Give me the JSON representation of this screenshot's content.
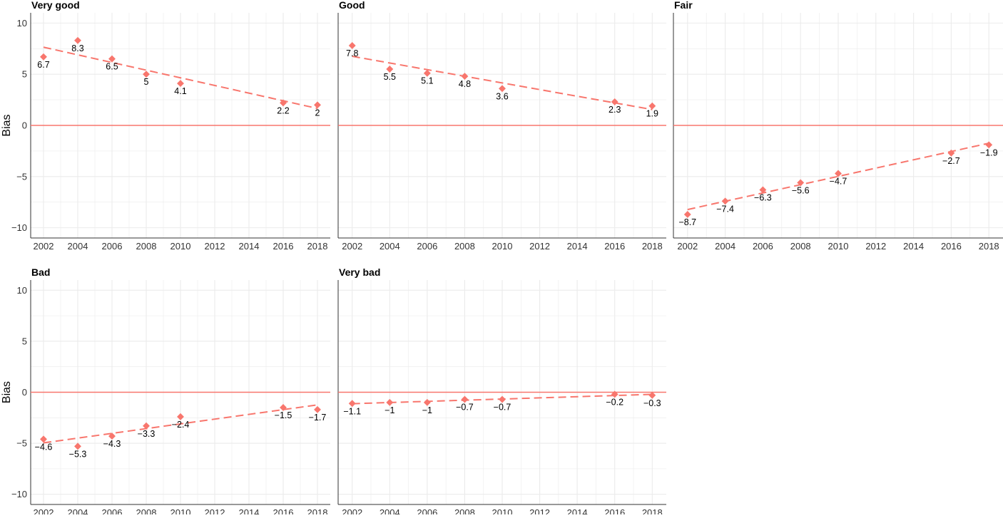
{
  "chart_data": {
    "type": "scatter",
    "xlabel": "",
    "ylabel": "Bias",
    "x": [
      2002,
      2004,
      2006,
      2008,
      2010,
      2016,
      2018
    ],
    "x_ticks": [
      2002,
      2004,
      2006,
      2008,
      2010,
      2012,
      2014,
      2016,
      2018
    ],
    "y_ticks": [
      10,
      5,
      0,
      -5,
      -10
    ],
    "xlim": [
      2001.25,
      2018.75
    ],
    "ylim": [
      -11,
      11
    ],
    "grid": true,
    "reference_line_y": 0,
    "trend_line": "dashed linear fit",
    "colors": {
      "points": "#F8766D",
      "trend": "#F8766D",
      "reference": "#F8766D",
      "grid": "#EBEBEB",
      "axis": "#333333"
    },
    "panels": [
      {
        "title": "Very good",
        "values": [
          6.7,
          8.3,
          6.5,
          5,
          4.1,
          2.2,
          2
        ],
        "labels": [
          "6.7",
          "8.3",
          "6.5",
          "5",
          "4.1",
          "2.2",
          "2"
        ]
      },
      {
        "title": "Good",
        "values": [
          7.8,
          5.5,
          5.1,
          4.8,
          3.6,
          2.3,
          1.9
        ],
        "labels": [
          "7.8",
          "5.5",
          "5.1",
          "4.8",
          "3.6",
          "2.3",
          "1.9"
        ]
      },
      {
        "title": "Fair",
        "values": [
          -8.7,
          -7.4,
          -6.3,
          -5.6,
          -4.7,
          -2.7,
          -1.9
        ],
        "labels": [
          "−8.7",
          "−7.4",
          "−6.3",
          "−5.6",
          "−4.7",
          "−2.7",
          "−1.9"
        ]
      },
      {
        "title": "Bad",
        "values": [
          -4.6,
          -5.3,
          -4.3,
          -3.3,
          -2.4,
          -1.5,
          -1.7
        ],
        "labels": [
          "−4.6",
          "−5.3",
          "−4.3",
          "−3.3",
          "−2.4",
          "−1.5",
          "−1.7"
        ]
      },
      {
        "title": "Very bad",
        "values": [
          -1.1,
          -1,
          -1,
          -0.7,
          -0.7,
          -0.2,
          -0.3
        ],
        "labels": [
          "−1.1",
          "−1",
          "−1",
          "−0.7",
          "−0.7",
          "−0.2",
          "−0.3"
        ]
      }
    ]
  }
}
